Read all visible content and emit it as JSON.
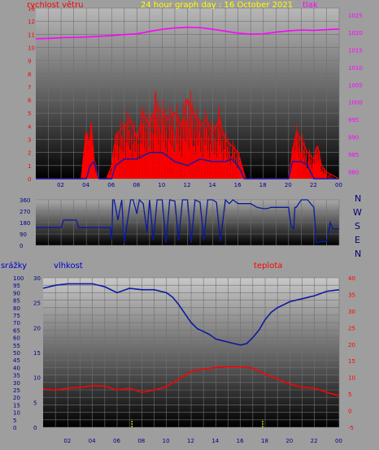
{
  "colors": {
    "wind": "#ff0000",
    "gust": "#1a1aa8",
    "pressure": "#ff00ff",
    "direction": "#0a1aa0",
    "humidity": "#0a1aa0",
    "temperature": "#ff0000",
    "rain": "#ffff00",
    "text_blue": "#0000cc",
    "text_red": "#ff0000",
    "title": "#ffff00"
  },
  "top": {
    "title": "24 hour graph day : 16 October 2021",
    "left_label": "rychlost větru",
    "right_label": "tlak"
  },
  "dir": {
    "compass": [
      "N",
      "W",
      "S",
      "E",
      "N"
    ]
  },
  "bottom": {
    "rain_label": "srážky",
    "humidity_label": "vlhkost",
    "temperature_label": "teplota"
  },
  "x_ticks": [
    "02",
    "04",
    "06",
    "08",
    "10",
    "12",
    "14",
    "16",
    "18",
    "20",
    "22",
    "00"
  ],
  "chart_data": [
    {
      "type": "line",
      "title": "24 hour graph day : 16 October 2021",
      "x_unit": "hour",
      "xlim": [
        0,
        24
      ],
      "y_left": {
        "label": "rychlost větru",
        "ticks": [
          0,
          1,
          2,
          3,
          4,
          5,
          6,
          7,
          8,
          9,
          10,
          11,
          12,
          13
        ],
        "ylim": [
          0,
          13
        ]
      },
      "y_right": {
        "label": "tlak",
        "ticks": [
          980,
          985,
          990,
          995,
          1000,
          1005,
          1010,
          1015,
          1020,
          1025
        ],
        "ylim": [
          978,
          1027
        ]
      },
      "series": [
        {
          "name": "rychlost větru",
          "axis": "left",
          "x": [
            0,
            3.6,
            3.8,
            4.0,
            4.2,
            4.4,
            4.6,
            5.0,
            5.6,
            6.0,
            6.2,
            6.5,
            7.0,
            7.5,
            8.0,
            8.5,
            9.0,
            9.5,
            10.0,
            10.5,
            11.0,
            11.5,
            12.0,
            12.5,
            13.0,
            13.5,
            14.0,
            14.5,
            15.0,
            15.5,
            16.0,
            16.3,
            16.6,
            17.0,
            18.0,
            19.0,
            20.0,
            20.3,
            20.6,
            21.0,
            21.5,
            22.0,
            22.3,
            22.6,
            23.0,
            24.0
          ],
          "y": [
            0,
            0,
            2,
            3.5,
            2.5,
            4,
            1.5,
            0,
            0,
            1,
            2.5,
            3.5,
            4,
            4.5,
            3,
            5,
            4,
            5.5,
            5,
            4.5,
            5,
            4,
            6,
            5,
            4,
            4.5,
            3.5,
            4.5,
            3,
            2.5,
            2,
            1,
            0,
            0,
            0,
            0,
            0,
            2,
            3.5,
            3,
            2,
            1.5,
            2.5,
            1,
            0.5,
            0
          ]
        },
        {
          "name": "gust",
          "axis": "left",
          "x": [
            0,
            4.0,
            4.3,
            4.6,
            5.0,
            6.0,
            6.3,
            7.0,
            8.0,
            9.0,
            10.0,
            11.0,
            12.0,
            13.0,
            14.0,
            15.0,
            15.5,
            16.0,
            16.5,
            17.0,
            20.0,
            20.3,
            21.0,
            21.5,
            22.0,
            24.0
          ],
          "y": [
            0,
            0,
            1,
            1.3,
            0,
            0,
            1,
            1.5,
            1.5,
            2,
            2,
            1.3,
            1,
            1.5,
            1.3,
            1.3,
            1.5,
            1,
            0,
            0,
            0,
            1.3,
            1.3,
            1,
            0,
            0
          ]
        },
        {
          "name": "tlak",
          "axis": "right",
          "x": [
            0,
            1,
            2,
            3,
            4,
            5,
            6,
            7,
            8,
            9,
            10,
            11,
            12,
            13,
            14,
            15,
            16,
            17,
            18,
            19,
            20,
            21,
            22,
            23,
            24
          ],
          "y": [
            1018.2,
            1018.3,
            1018.5,
            1018.6,
            1018.7,
            1018.9,
            1019.1,
            1019.4,
            1019.6,
            1020.3,
            1020.9,
            1021.3,
            1021.5,
            1021.4,
            1020.9,
            1020.4,
            1019.8,
            1019.5,
            1019.6,
            1020.1,
            1020.5,
            1020.7,
            1020.6,
            1020.8,
            1021.0
          ]
        }
      ]
    },
    {
      "type": "line",
      "x_unit": "hour",
      "xlim": [
        0,
        24
      ],
      "y_left": {
        "ticks": [
          0,
          90,
          180,
          270,
          360
        ],
        "ylim": [
          0,
          360
        ]
      },
      "y_right": {
        "ticks": [
          "N",
          "W",
          "S",
          "E",
          "N"
        ]
      },
      "series": [
        {
          "name": "direction",
          "x": [
            0,
            2,
            2.2,
            3.2,
            3.4,
            3.6,
            5.9,
            6.0,
            6.1,
            6.2,
            6.5,
            6.8,
            7.0,
            7.5,
            7.7,
            8.0,
            8.2,
            8.5,
            8.8,
            9.0,
            9.3,
            9.6,
            10.0,
            10.3,
            10.6,
            11.0,
            11.3,
            11.6,
            12.0,
            12.3,
            12.6,
            13.0,
            13.3,
            13.6,
            14.0,
            14.3,
            14.6,
            15.0,
            15.3,
            15.6,
            16.0,
            16.5,
            17.0,
            17.5,
            18.0,
            18.3,
            18.6,
            19.0,
            19.5,
            20.0,
            20.2,
            20.4,
            20.5,
            20.6,
            21.0,
            21.5,
            22.0,
            22.2,
            22.3,
            22.6,
            23.0,
            23.3,
            23.5,
            24.0
          ],
          "y": [
            140,
            140,
            200,
            200,
            140,
            140,
            140,
            40,
            360,
            360,
            200,
            360,
            20,
            360,
            360,
            250,
            360,
            330,
            100,
            360,
            40,
            360,
            360,
            20,
            360,
            350,
            40,
            360,
            360,
            20,
            360,
            340,
            40,
            360,
            360,
            340,
            30,
            360,
            330,
            360,
            330,
            330,
            330,
            300,
            290,
            290,
            300,
            300,
            300,
            300,
            150,
            130,
            300,
            300,
            360,
            360,
            300,
            20,
            20,
            30,
            30,
            180,
            130,
            130
          ]
        }
      ]
    },
    {
      "type": "line",
      "x_unit": "hour",
      "xlim": [
        0,
        24
      ],
      "y_left_outer": {
        "label": "srážky",
        "ticks": [
          0,
          5,
          10,
          15,
          20,
          25,
          30,
          35,
          40,
          45,
          50,
          55,
          60,
          65,
          70,
          75,
          80,
          85,
          90,
          95,
          100
        ],
        "ylim": [
          0,
          100
        ]
      },
      "y_left_inner": {
        "label": "vlhkost",
        "ticks": [
          0,
          5,
          10,
          15,
          20,
          25,
          30
        ],
        "ylim": [
          0,
          30
        ]
      },
      "y_right": {
        "label": "teplota",
        "ticks": [
          -5,
          0,
          5,
          10,
          15,
          20,
          25,
          30,
          35,
          40
        ],
        "ylim": [
          -5,
          40
        ]
      },
      "series": [
        {
          "name": "vlhkost",
          "axis": "outer",
          "x": [
            0,
            1,
            2,
            3,
            4,
            5,
            6,
            7,
            8,
            9,
            10,
            10.5,
            11,
            11.5,
            12,
            12.5,
            13,
            13.5,
            14,
            14.5,
            15,
            15.5,
            16,
            16.5,
            17,
            17.5,
            18,
            18.5,
            19,
            19.5,
            20,
            21,
            22,
            23,
            24
          ],
          "y": [
            93,
            95,
            96,
            96,
            96,
            94,
            90,
            93,
            92,
            92,
            90,
            87,
            82,
            76,
            70,
            66,
            64,
            62,
            59,
            58,
            57,
            56,
            55,
            56,
            60,
            65,
            72,
            77,
            80,
            82,
            84,
            86,
            88,
            91,
            92
          ]
        },
        {
          "name": "teplota",
          "axis": "right",
          "x": [
            0,
            1,
            2,
            3,
            4,
            5,
            6,
            7,
            8,
            9,
            10,
            11,
            12,
            13,
            14,
            15,
            16,
            17,
            18,
            19,
            20,
            21,
            22,
            23,
            24
          ],
          "y": [
            6.5,
            6.2,
            6.8,
            7.0,
            7.5,
            7.4,
            6.2,
            6.8,
            5.5,
            6.2,
            7.2,
            9.5,
            11.8,
            12.5,
            13.0,
            13.2,
            13.2,
            12.8,
            11.0,
            9.5,
            8.0,
            7.0,
            6.8,
            5.5,
            4.5
          ]
        },
        {
          "name": "srážky",
          "axis": "outer",
          "type": "bar",
          "x": [
            7.2,
            17.8
          ],
          "y": [
            5,
            5
          ]
        }
      ]
    }
  ]
}
